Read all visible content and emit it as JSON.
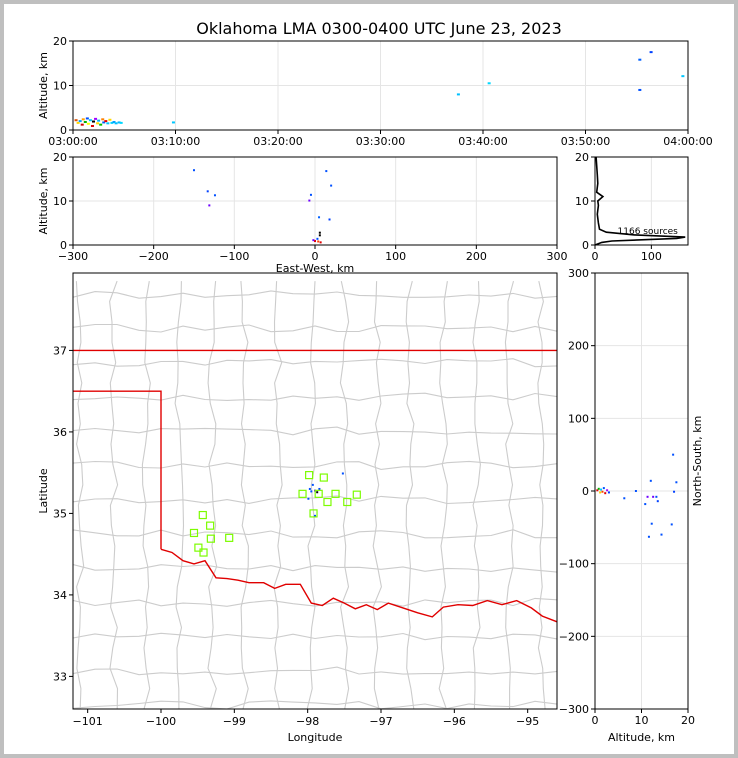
{
  "title": "Oklahoma LMA 0300-0400 UTC June 23, 2023",
  "colors": {
    "state_border": "#e00000",
    "county_lines": "#cccccc",
    "stations": "#7cfc00",
    "grid": "#e5e5e5"
  },
  "chart_data": [
    {
      "type": "scatter",
      "name": "time-height",
      "ylabel": "Altitude, km",
      "xlim": [
        "03:00:00",
        "04:00:00"
      ],
      "ylim": [
        0,
        20
      ],
      "x_ticks": [
        "03:00:00",
        "03:10:00",
        "03:20:00",
        "03:30:00",
        "03:40:00",
        "03:50:00",
        "04:00:00"
      ],
      "y_ticks": [
        0,
        10,
        20
      ],
      "grid": true,
      "points": [
        {
          "t": 0.3,
          "alt": 2.2,
          "c": "#e05000"
        },
        {
          "t": 0.5,
          "alt": 1.6,
          "c": "#ffd700"
        },
        {
          "t": 0.7,
          "alt": 2.0,
          "c": "#00a0ff"
        },
        {
          "t": 0.9,
          "alt": 1.2,
          "c": "#d00000"
        },
        {
          "t": 1.0,
          "alt": 2.4,
          "c": "#ffa000"
        },
        {
          "t": 1.2,
          "alt": 1.8,
          "c": "#00b000"
        },
        {
          "t": 1.4,
          "alt": 2.6,
          "c": "#0050ff"
        },
        {
          "t": 1.5,
          "alt": 1.4,
          "c": "#ffff00"
        },
        {
          "t": 1.7,
          "alt": 2.2,
          "c": "#00c8ff"
        },
        {
          "t": 1.9,
          "alt": 0.9,
          "c": "#e00000"
        },
        {
          "t": 2.0,
          "alt": 1.9,
          "c": "#000000"
        },
        {
          "t": 2.2,
          "alt": 2.5,
          "c": "#a000ff"
        },
        {
          "t": 2.4,
          "alt": 1.5,
          "c": "#ffd700"
        },
        {
          "t": 2.5,
          "alt": 2.1,
          "c": "#00b0ff"
        },
        {
          "t": 2.7,
          "alt": 1.2,
          "c": "#00c000"
        },
        {
          "t": 2.9,
          "alt": 2.4,
          "c": "#ff8000"
        },
        {
          "t": 3.0,
          "alt": 1.7,
          "c": "#0060ff"
        },
        {
          "t": 3.2,
          "alt": 2.0,
          "c": "#e00000"
        },
        {
          "t": 3.4,
          "alt": 1.5,
          "c": "#00c8ff"
        },
        {
          "t": 3.6,
          "alt": 2.3,
          "c": "#ffd700"
        },
        {
          "t": 3.8,
          "alt": 1.6,
          "c": "#00d0ff"
        },
        {
          "t": 4.0,
          "alt": 1.8,
          "c": "#00a0ff"
        },
        {
          "t": 4.2,
          "alt": 1.5,
          "c": "#00c0ff"
        },
        {
          "t": 4.5,
          "alt": 1.7,
          "c": "#00b8ff"
        },
        {
          "t": 4.7,
          "alt": 1.6,
          "c": "#00d8ff"
        },
        {
          "t": 9.8,
          "alt": 1.7,
          "c": "#00c8ff"
        },
        {
          "t": 37.6,
          "alt": 8.0,
          "c": "#00c0ff"
        },
        {
          "t": 40.6,
          "alt": 10.5,
          "c": "#00d8ff"
        },
        {
          "t": 55.3,
          "alt": 15.8,
          "c": "#0060ff"
        },
        {
          "t": 55.3,
          "alt": 9.0,
          "c": "#0050ff"
        },
        {
          "t": 56.4,
          "alt": 17.5,
          "c": "#0040ff"
        },
        {
          "t": 59.5,
          "alt": 12.1,
          "c": "#00c8ff"
        }
      ]
    },
    {
      "type": "scatter",
      "name": "east-west-height",
      "xlabel": "East-West, km",
      "ylabel": "Altitude, km",
      "xlim": [
        -300,
        300
      ],
      "ylim": [
        0,
        20
      ],
      "x_ticks": [
        -300,
        -200,
        -100,
        0,
        100,
        200,
        300
      ],
      "y_ticks": [
        0,
        10,
        20
      ],
      "grid": true,
      "points": [
        {
          "x": -150,
          "alt": 17.0,
          "c": "#0050ff"
        },
        {
          "x": -133,
          "alt": 12.2,
          "c": "#0040ff"
        },
        {
          "x": -131,
          "alt": 9.0,
          "c": "#7000ff"
        },
        {
          "x": -124,
          "alt": 11.3,
          "c": "#0050ff"
        },
        {
          "x": -5,
          "alt": 11.4,
          "c": "#0050ff"
        },
        {
          "x": -7,
          "alt": 10.1,
          "c": "#7000ff"
        },
        {
          "x": 5,
          "alt": 6.3,
          "c": "#0060ff"
        },
        {
          "x": 14,
          "alt": 16.8,
          "c": "#0050ff"
        },
        {
          "x": 20,
          "alt": 13.5,
          "c": "#0050ff"
        },
        {
          "x": 18,
          "alt": 5.8,
          "c": "#0040ff"
        },
        {
          "x": 6,
          "alt": 2.8,
          "c": "#000000"
        },
        {
          "x": 6,
          "alt": 2.2,
          "c": "#000000"
        },
        {
          "x": 3,
          "alt": 1.4,
          "c": "#0050ff"
        },
        {
          "x": 0,
          "alt": 0.9,
          "c": "#e00000"
        },
        {
          "x": 4,
          "alt": 0.8,
          "c": "#ff4000"
        },
        {
          "x": -2,
          "alt": 1.1,
          "c": "#7000ff"
        },
        {
          "x": 7,
          "alt": 0.6,
          "c": "#e00000"
        }
      ]
    },
    {
      "type": "line",
      "name": "altitude-histogram",
      "annotation": "1166 sources",
      "xlim": [
        0,
        165
      ],
      "ylim": [
        0,
        20
      ],
      "x_ticks": [
        0,
        100
      ],
      "y_ticks": [
        0,
        10,
        20
      ],
      "grid": true,
      "profile": [
        [
          0,
          0
        ],
        [
          12,
          0.6
        ],
        [
          30,
          0.9
        ],
        [
          145,
          1.5
        ],
        [
          160,
          1.8
        ],
        [
          70,
          2.3
        ],
        [
          20,
          2.9
        ],
        [
          8,
          3.6
        ],
        [
          6,
          5
        ],
        [
          4,
          7
        ],
        [
          6,
          9
        ],
        [
          5,
          10
        ],
        [
          14,
          11
        ],
        [
          3,
          12
        ],
        [
          5,
          14
        ],
        [
          4,
          16
        ],
        [
          3,
          18
        ],
        [
          2,
          20
        ]
      ]
    },
    {
      "type": "scatter",
      "name": "plan-view",
      "xlabel": "Longitude",
      "ylabel": "Latitude",
      "xlim": [
        -101.2,
        -94.6
      ],
      "ylim": [
        32.6,
        37.95
      ],
      "x_ticks": [
        -101,
        -100,
        -99,
        -98,
        -97,
        -96,
        -95
      ],
      "y_ticks": [
        33,
        34,
        35,
        36,
        37
      ],
      "stations": [
        {
          "lon": -97.98,
          "lat": 35.47
        },
        {
          "lon": -97.78,
          "lat": 35.44
        },
        {
          "lon": -98.07,
          "lat": 35.24
        },
        {
          "lon": -97.85,
          "lat": 35.24
        },
        {
          "lon": -97.62,
          "lat": 35.24
        },
        {
          "lon": -97.33,
          "lat": 35.23
        },
        {
          "lon": -97.73,
          "lat": 35.14
        },
        {
          "lon": -97.46,
          "lat": 35.14
        },
        {
          "lon": -97.92,
          "lat": 35.0
        },
        {
          "lon": -99.43,
          "lat": 34.98
        },
        {
          "lon": -99.33,
          "lat": 34.85
        },
        {
          "lon": -99.55,
          "lat": 34.76
        },
        {
          "lon": -99.32,
          "lat": 34.69
        },
        {
          "lon": -99.07,
          "lat": 34.7
        },
        {
          "lon": -99.49,
          "lat": 34.58
        },
        {
          "lon": -99.42,
          "lat": 34.52
        }
      ],
      "sources": [
        {
          "lon": -97.93,
          "lat": 35.35,
          "c": "#0050ff"
        },
        {
          "lon": -97.9,
          "lat": 35.28,
          "c": "#7000ff"
        },
        {
          "lon": -97.87,
          "lat": 35.26,
          "c": "#000000"
        },
        {
          "lon": -97.95,
          "lat": 35.27,
          "c": "#0050ff"
        },
        {
          "lon": -97.84,
          "lat": 35.3,
          "c": "#0040ff"
        },
        {
          "lon": -97.97,
          "lat": 35.3,
          "c": "#0050ff"
        },
        {
          "lon": -97.52,
          "lat": 35.49,
          "c": "#0050ff"
        },
        {
          "lon": -97.99,
          "lat": 35.18,
          "c": "#0050ff"
        },
        {
          "lon": -97.9,
          "lat": 34.97,
          "c": "#0050ff"
        }
      ]
    },
    {
      "type": "scatter",
      "name": "north-south-height",
      "xlabel": "Altitude, km",
      "ylabel": "North-South, km",
      "xlim": [
        0,
        20
      ],
      "ylim": [
        -300,
        300
      ],
      "x_ticks": [
        0,
        10,
        20
      ],
      "y_ticks": [
        -300,
        -200,
        -100,
        0,
        100,
        200,
        300
      ],
      "grid": true,
      "points": [
        {
          "alt": 0.5,
          "y": 1,
          "c": "#e00000"
        },
        {
          "alt": 0.8,
          "y": 3,
          "c": "#00b000"
        },
        {
          "alt": 1.1,
          "y": -2,
          "c": "#ffd700"
        },
        {
          "alt": 1.3,
          "y": 2,
          "c": "#00c8ff"
        },
        {
          "alt": 1.6,
          "y": -1,
          "c": "#ff4000"
        },
        {
          "alt": 1.9,
          "y": 4,
          "c": "#0050ff"
        },
        {
          "alt": 2.2,
          "y": -3,
          "c": "#e00000"
        },
        {
          "alt": 2.6,
          "y": 1,
          "c": "#a000ff"
        },
        {
          "alt": 3.0,
          "y": -2,
          "c": "#0040ff"
        },
        {
          "alt": 6.3,
          "y": -10,
          "c": "#0050ff"
        },
        {
          "alt": 8.8,
          "y": 0,
          "c": "#0050ff"
        },
        {
          "alt": 10.8,
          "y": -18,
          "c": "#0050ff"
        },
        {
          "alt": 11.3,
          "y": -8,
          "c": "#7000ff"
        },
        {
          "alt": 12.0,
          "y": 14,
          "c": "#0050ff"
        },
        {
          "alt": 12.2,
          "y": -45,
          "c": "#0050ff"
        },
        {
          "alt": 12.5,
          "y": -8,
          "c": "#7000ff"
        },
        {
          "alt": 13.2,
          "y": -8,
          "c": "#0050ff"
        },
        {
          "alt": 13.5,
          "y": -14,
          "c": "#0040ff"
        },
        {
          "alt": 16.5,
          "y": -46,
          "c": "#0050ff"
        },
        {
          "alt": 16.8,
          "y": 50,
          "c": "#0050ff"
        },
        {
          "alt": 17.0,
          "y": -1,
          "c": "#0040ff"
        },
        {
          "alt": 17.5,
          "y": 12,
          "c": "#0050ff"
        },
        {
          "alt": 11.6,
          "y": -63,
          "c": "#0050ff"
        },
        {
          "alt": 14.3,
          "y": -60,
          "c": "#0050ff"
        }
      ]
    }
  ]
}
